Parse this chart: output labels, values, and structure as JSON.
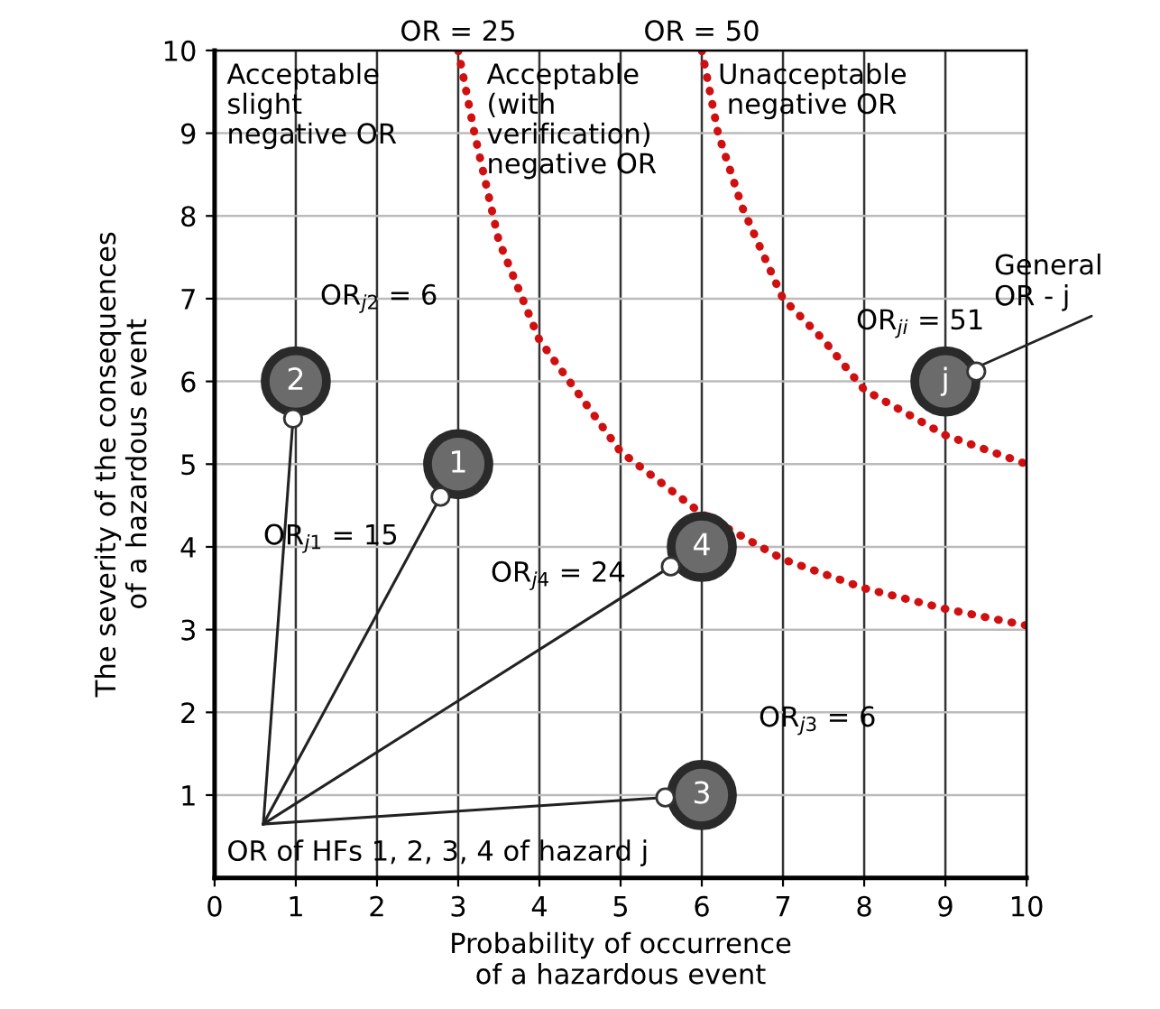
{
  "chart_data": {
    "type": "scatter",
    "xlabel": "Probability of occurrence\nof a hazardous event",
    "ylabel": "The severity of the consequences\nof a hazardous event",
    "xlim": [
      0,
      10
    ],
    "ylim": [
      0,
      10
    ],
    "xticks": [
      0,
      1,
      2,
      3,
      4,
      5,
      6,
      7,
      8,
      9,
      10
    ],
    "yticks": [
      1,
      2,
      3,
      4,
      5,
      6,
      7,
      8,
      9,
      10
    ],
    "grid": true,
    "series": [
      {
        "type": "line",
        "color": "#d01010",
        "line_style": "dotted",
        "x": [
          3,
          3.2,
          3.5,
          4,
          5,
          6,
          7,
          8,
          9,
          10
        ],
        "values": [
          10,
          9,
          7.7,
          6.5,
          5.15,
          4.4,
          3.85,
          3.5,
          3.25,
          3.05
        ]
      },
      {
        "type": "line",
        "color": "#d01010",
        "line_style": "dotted",
        "x": [
          6,
          6.2,
          6.5,
          7,
          7.5,
          8,
          9,
          10
        ],
        "values": [
          10,
          9,
          8.1,
          7,
          6.5,
          5.9,
          5.35,
          5
        ]
      },
      {
        "color": "#6b6b6b",
        "x": [
          3,
          1,
          6,
          6,
          9
        ],
        "values": [
          5,
          6,
          1,
          4,
          6
        ]
      }
    ],
    "annotations": [
      {
        "text": "OR = 25",
        "x": 3,
        "y": 10
      },
      {
        "text": "OR = 50",
        "x": 6,
        "y": 10
      },
      "Acceptable\nslight\nnegative OR",
      "Acceptable\n(with\nverification)\nnegative OR",
      "Unacceptable\n negative OR",
      {
        "text": "1",
        "x": 3,
        "y": 5
      },
      {
        "text": "2",
        "x": 1,
        "y": 6
      },
      {
        "text": "3",
        "x": 6,
        "y": 1
      },
      {
        "text": "4",
        "x": 6,
        "y": 4
      },
      {
        "text": "j",
        "x": 9,
        "y": 6
      },
      "OR$_{j2}$ = 6",
      "OR$_{j1}$ = 15",
      "OR$_{j4}$ = 24",
      "OR$_{j3}$ = 6",
      "OR$_{ji}$ = 51",
      "OR of HFs 1, 2, 3, 4 of hazard j",
      {
        "text": "General\nOR - j",
        "x": 9,
        "y": 6
      }
    ]
  }
}
